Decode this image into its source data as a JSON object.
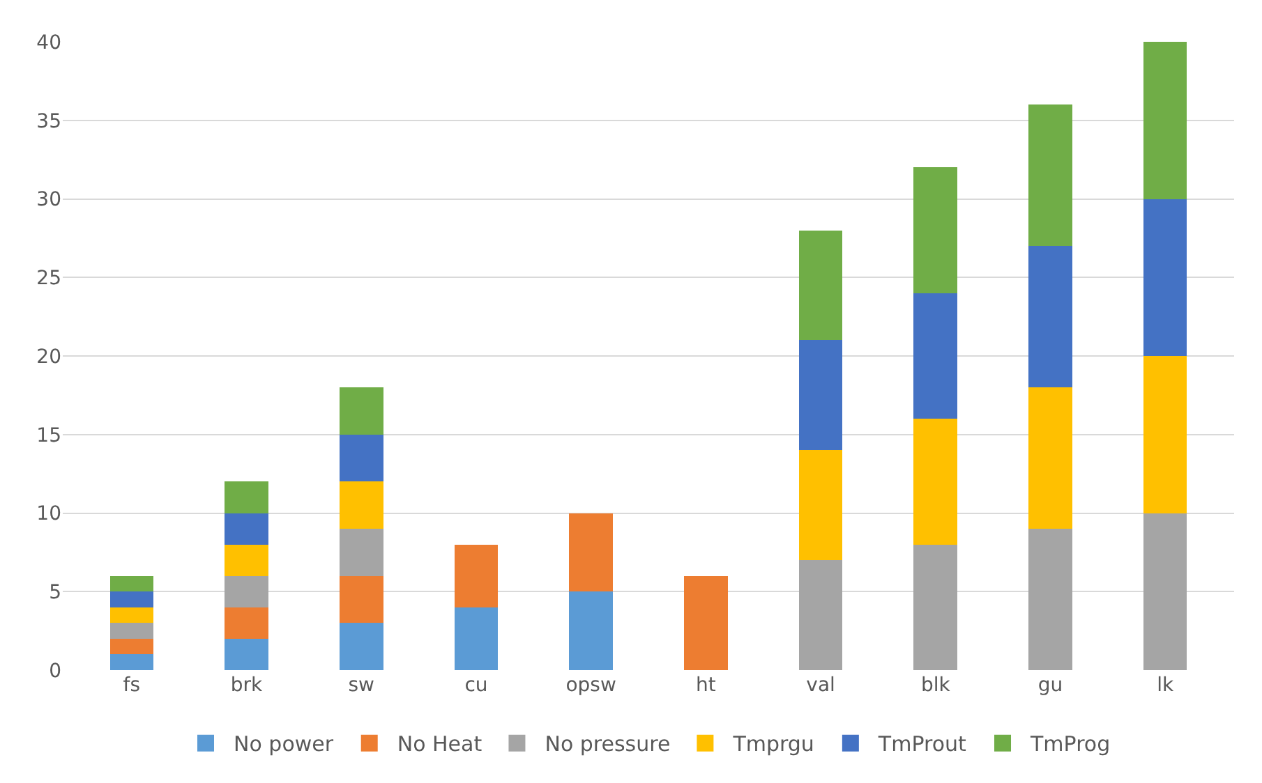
{
  "chart_data": {
    "type": "bar",
    "stacked": true,
    "categories": [
      "fs",
      "brk",
      "sw",
      "cu",
      "opsw",
      "ht",
      "val",
      "blk",
      "gu",
      "lk"
    ],
    "series": [
      {
        "name": "No power",
        "color": "#5b9bd5",
        "values": [
          1,
          2,
          3,
          4,
          5,
          null,
          null,
          null,
          null,
          null
        ]
      },
      {
        "name": "No Heat",
        "color": "#ed7d31",
        "values": [
          1,
          2,
          3,
          4,
          5,
          6,
          null,
          null,
          null,
          null
        ]
      },
      {
        "name": "No pressure",
        "color": "#a5a5a5",
        "values": [
          1,
          2,
          3,
          null,
          null,
          null,
          7,
          8,
          9,
          10
        ]
      },
      {
        "name": "Tmprgu",
        "color": "#ffc000",
        "values": [
          1,
          2,
          3,
          null,
          null,
          null,
          7,
          8,
          9,
          10
        ]
      },
      {
        "name": "TmProut",
        "color": "#4472c4",
        "values": [
          1,
          2,
          3,
          null,
          null,
          null,
          7,
          8,
          9,
          10
        ]
      },
      {
        "name": "TmProg",
        "color": "#70ad47",
        "values": [
          1,
          2,
          3,
          null,
          null,
          null,
          7,
          8,
          9,
          10
        ]
      }
    ],
    "ylim": [
      0,
      40
    ],
    "yticks": [
      0,
      5,
      10,
      15,
      20,
      25,
      30,
      35,
      40
    ],
    "grid": "y",
    "legend": "bottom"
  }
}
